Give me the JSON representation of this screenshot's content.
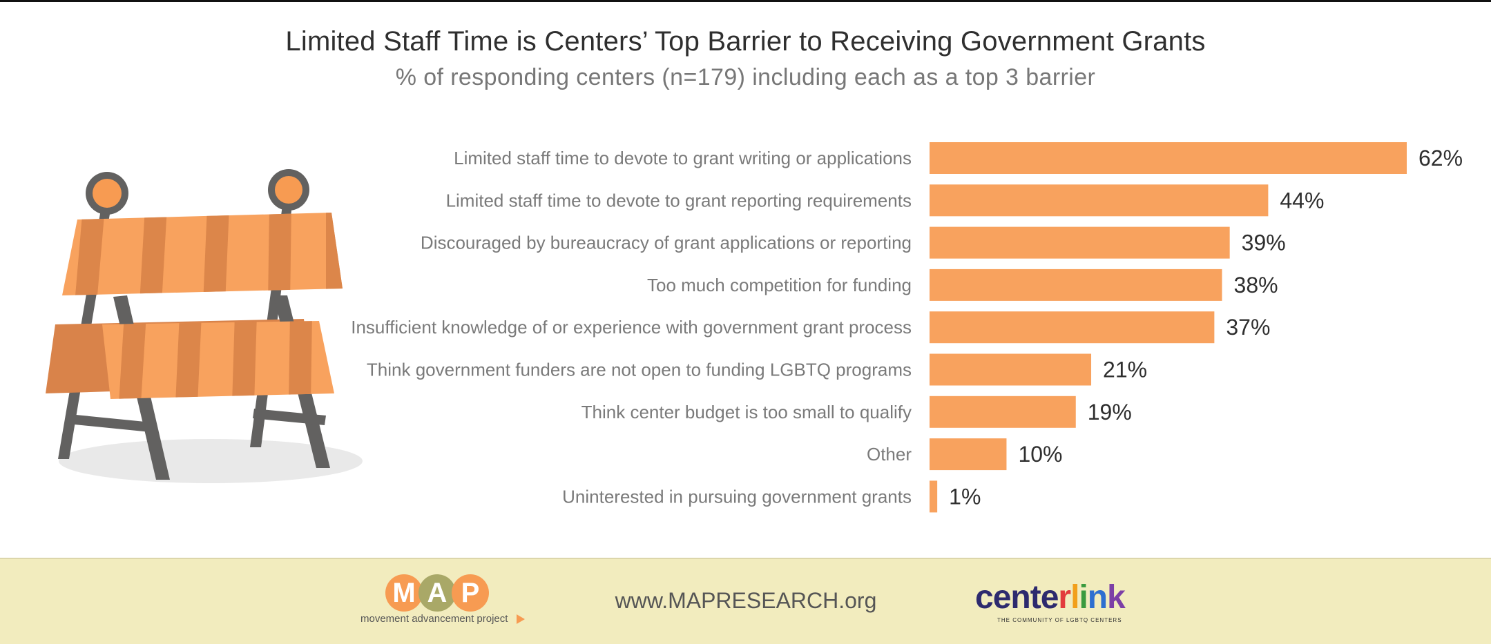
{
  "header": {
    "title": "Limited Staff Time is Centers’ Top Barrier to Receiving Government Grants",
    "subtitle": "% of responding centers (n=179) including each as a top 3 barrier"
  },
  "illustration": {
    "icon": "road-barrier-icon"
  },
  "chart_data": {
    "type": "bar",
    "orientation": "horizontal",
    "categories": [
      "Limited staff time to devote to grant writing or applications",
      "Limited staff time to devote to grant reporting requirements",
      "Discouraged by bureaucracy of grant applications or reporting",
      "Too much competition for funding",
      "Insufficient knowledge of or experience with government grant process",
      "Think government funders are not open to funding LGBTQ programs",
      "Think center budget is too small to qualify",
      "Other",
      "Uninterested in pursuing government grants"
    ],
    "values": [
      62,
      44,
      39,
      38,
      37,
      21,
      19,
      10,
      1
    ],
    "value_labels": [
      "62%",
      "44%",
      "39%",
      "38%",
      "37%",
      "21%",
      "19%",
      "10%",
      "1%"
    ],
    "xlim": [
      0,
      100
    ],
    "grid": false,
    "legend": "none",
    "bar_color": "#f8a25e"
  },
  "footer": {
    "map_letters": [
      "M",
      "A",
      "P"
    ],
    "map_letter_colors": [
      "#f79b52",
      "#a9a867",
      "#f79b52"
    ],
    "map_tagline": "movement advancement project",
    "website": "www.MAPRESEARCH.org",
    "centerlink_letters": [
      "c",
      "e",
      "n",
      "t",
      "e",
      "r",
      "l",
      "i",
      "n",
      "k"
    ],
    "centerlink_colors": [
      "#2d2a6e",
      "#2d2a6e",
      "#2d2a6e",
      "#2d2a6e",
      "#2d2a6e",
      "#e23c3c",
      "#f2a01b",
      "#3a9a3f",
      "#2e6fd0",
      "#7c3fa6"
    ],
    "centerlink_tagline": "THE COMMUNITY OF LGBTQ CENTERS"
  }
}
